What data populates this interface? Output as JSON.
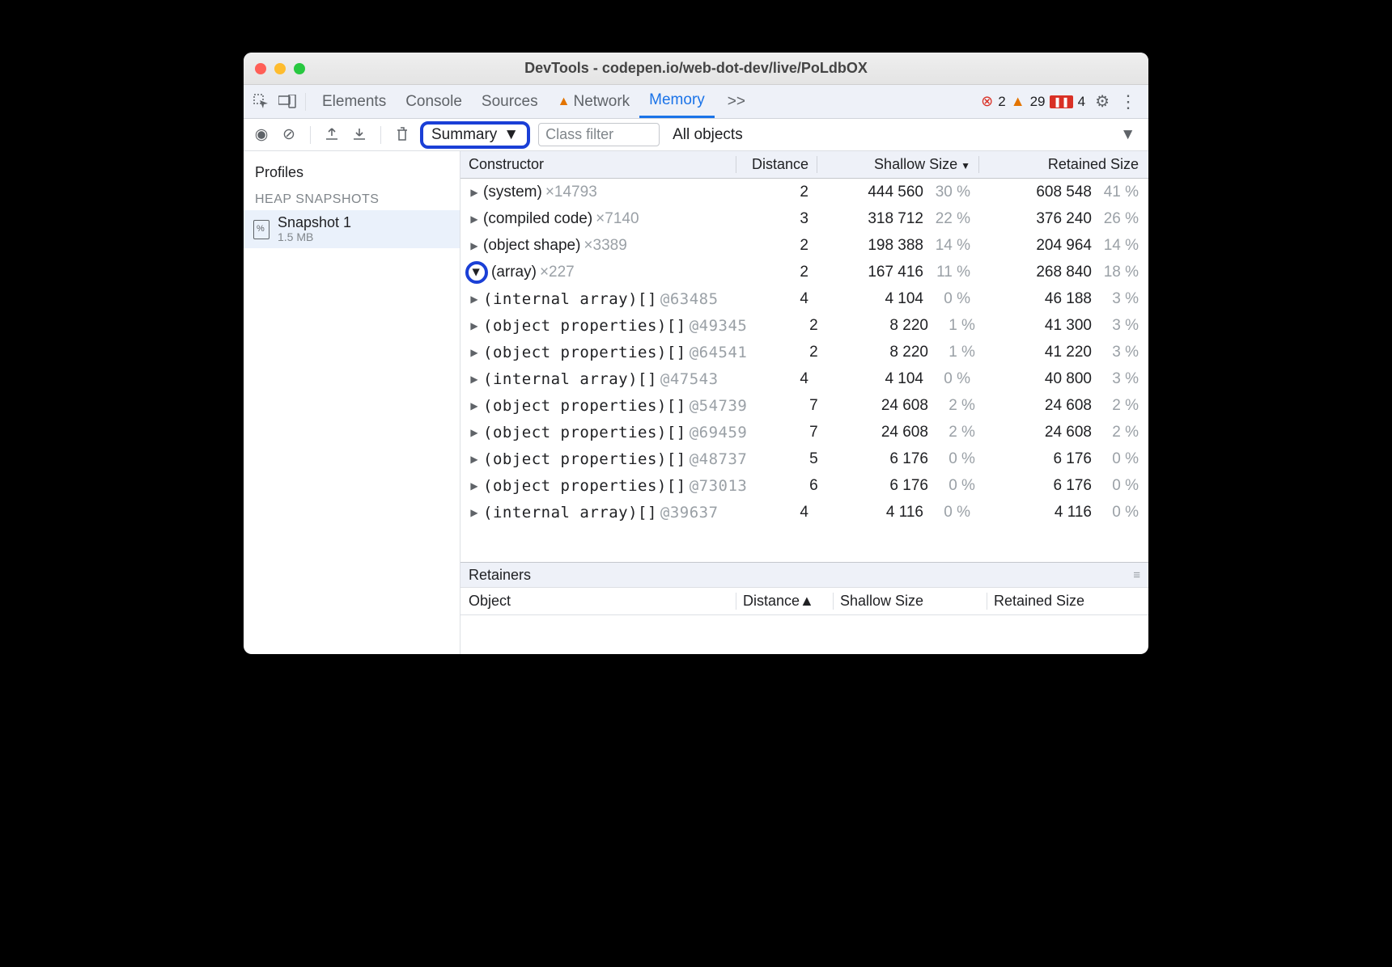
{
  "window": {
    "title": "DevTools - codepen.io/web-dot-dev/live/PoLdbOX"
  },
  "tabs": {
    "items": [
      "Elements",
      "Console",
      "Sources",
      "Network",
      "Memory"
    ],
    "active_index": 4,
    "warn_tab_index": 3,
    "overflow": ">>"
  },
  "status": {
    "errors": "2",
    "warnings": "29",
    "issues": "4"
  },
  "toolbar": {
    "summary_label": "Summary",
    "filter_placeholder": "Class filter",
    "scope_label": "All objects"
  },
  "sidebar": {
    "title": "Profiles",
    "section": "HEAP SNAPSHOTS",
    "snapshot": {
      "name": "Snapshot 1",
      "size": "1.5 MB"
    }
  },
  "table": {
    "headers": {
      "constructor": "Constructor",
      "distance": "Distance",
      "shallow": "Shallow Size",
      "retained": "Retained Size"
    },
    "rows": [
      {
        "lvl": 0,
        "exp": false,
        "name": "(system)",
        "suffix": "×14793",
        "mono": false,
        "d": "2",
        "s": "444 560",
        "sp": "30 %",
        "r": "608 548",
        "rp": "41 %"
      },
      {
        "lvl": 0,
        "exp": false,
        "name": "(compiled code)",
        "suffix": "×7140",
        "mono": false,
        "d": "3",
        "s": "318 712",
        "sp": "22 %",
        "r": "376 240",
        "rp": "26 %"
      },
      {
        "lvl": 0,
        "exp": false,
        "name": "(object shape)",
        "suffix": "×3389",
        "mono": false,
        "d": "2",
        "s": "198 388",
        "sp": "14 %",
        "r": "204 964",
        "rp": "14 %"
      },
      {
        "lvl": 0,
        "exp": true,
        "name": "(array)",
        "suffix": "×227",
        "mono": false,
        "d": "2",
        "s": "167 416",
        "sp": "11 %",
        "r": "268 840",
        "rp": "18 %",
        "hl": true
      },
      {
        "lvl": 1,
        "exp": false,
        "name": "(internal array)[]",
        "suffix": "@63485",
        "mono": true,
        "d": "4",
        "s": "4 104",
        "sp": "0 %",
        "r": "46 188",
        "rp": "3 %"
      },
      {
        "lvl": 1,
        "exp": false,
        "name": "(object properties)[]",
        "suffix": "@49345",
        "mono": true,
        "d": "2",
        "s": "8 220",
        "sp": "1 %",
        "r": "41 300",
        "rp": "3 %"
      },
      {
        "lvl": 1,
        "exp": false,
        "name": "(object properties)[]",
        "suffix": "@64541",
        "mono": true,
        "d": "2",
        "s": "8 220",
        "sp": "1 %",
        "r": "41 220",
        "rp": "3 %"
      },
      {
        "lvl": 1,
        "exp": false,
        "name": "(internal array)[]",
        "suffix": "@47543",
        "mono": true,
        "d": "4",
        "s": "4 104",
        "sp": "0 %",
        "r": "40 800",
        "rp": "3 %"
      },
      {
        "lvl": 1,
        "exp": false,
        "name": "(object properties)[]",
        "suffix": "@54739",
        "mono": true,
        "d": "7",
        "s": "24 608",
        "sp": "2 %",
        "r": "24 608",
        "rp": "2 %"
      },
      {
        "lvl": 1,
        "exp": false,
        "name": "(object properties)[]",
        "suffix": "@69459",
        "mono": true,
        "d": "7",
        "s": "24 608",
        "sp": "2 %",
        "r": "24 608",
        "rp": "2 %"
      },
      {
        "lvl": 1,
        "exp": false,
        "name": "(object properties)[]",
        "suffix": "@48737",
        "mono": true,
        "d": "5",
        "s": "6 176",
        "sp": "0 %",
        "r": "6 176",
        "rp": "0 %"
      },
      {
        "lvl": 1,
        "exp": false,
        "name": "(object properties)[]",
        "suffix": "@73013",
        "mono": true,
        "d": "6",
        "s": "6 176",
        "sp": "0 %",
        "r": "6 176",
        "rp": "0 %"
      },
      {
        "lvl": 1,
        "exp": false,
        "name": "(internal array)[]",
        "suffix": "@39637",
        "mono": true,
        "d": "4",
        "s": "4 116",
        "sp": "0 %",
        "r": "4 116",
        "rp": "0 %"
      }
    ]
  },
  "retainers": {
    "title": "Retainers",
    "headers": {
      "object": "Object",
      "distance": "Distance",
      "shallow": "Shallow Size",
      "retained": "Retained Size"
    }
  },
  "colors": {
    "accent": "#1a73e8",
    "highlight_ring": "#1a3fd6",
    "text": "#202124",
    "muted": "#9aa0a6",
    "header_bg": "#eef1f8",
    "border": "#dcdfe4",
    "error": "#d93025",
    "warning": "#e37400"
  }
}
